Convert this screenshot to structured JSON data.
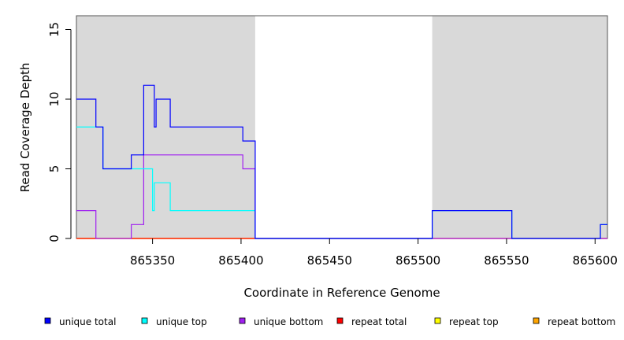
{
  "chart_data": {
    "type": "line",
    "title": "",
    "xlabel": "Coordinate in Reference Genome",
    "ylabel": "Read Coverage Depth",
    "xlim": [
      865307,
      865607
    ],
    "ylim": [
      0,
      16
    ],
    "xticks": [
      865350,
      865400,
      865450,
      865500,
      865550,
      865600
    ],
    "yticks": [
      0,
      5,
      10,
      15
    ],
    "shaded_regions": [
      [
        865307,
        865408
      ],
      [
        865508,
        865607
      ]
    ],
    "legend_position": "bottom",
    "series": [
      {
        "name": "unique total",
        "color": "#0000ff",
        "step": [
          [
            865307,
            10
          ],
          [
            865318,
            8
          ],
          [
            865322,
            5
          ],
          [
            865338,
            6
          ],
          [
            865345,
            11
          ],
          [
            865351,
            8
          ],
          [
            865352,
            10
          ],
          [
            865360,
            8
          ],
          [
            865401,
            7
          ],
          [
            865408,
            0
          ],
          [
            865508,
            2
          ],
          [
            865553,
            0
          ],
          [
            865603,
            1
          ],
          [
            865607,
            1
          ]
        ]
      },
      {
        "name": "unique top",
        "color": "#00ffff",
        "step": [
          [
            865307,
            8
          ],
          [
            865322,
            5
          ],
          [
            865350,
            2
          ],
          [
            865351,
            4
          ],
          [
            865360,
            2
          ],
          [
            865408,
            0
          ],
          [
            865508,
            2
          ],
          [
            865553,
            0
          ],
          [
            865603,
            1
          ],
          [
            865607,
            1
          ]
        ]
      },
      {
        "name": "unique bottom",
        "color": "#a020f0",
        "step": [
          [
            865307,
            2
          ],
          [
            865318,
            0
          ],
          [
            865338,
            1
          ],
          [
            865345,
            6
          ],
          [
            865401,
            5
          ],
          [
            865408,
            0
          ],
          [
            865607,
            0
          ]
        ]
      },
      {
        "name": "repeat total",
        "color": "#ff0000",
        "step": [
          [
            865307,
            0
          ],
          [
            865607,
            0
          ]
        ]
      },
      {
        "name": "repeat top",
        "color": "#ffff00",
        "step": [
          [
            865307,
            0
          ],
          [
            865607,
            0
          ]
        ]
      },
      {
        "name": "repeat bottom",
        "color": "#ffa500",
        "step": [
          [
            865307,
            0
          ],
          [
            865408,
            0
          ]
        ]
      }
    ]
  }
}
